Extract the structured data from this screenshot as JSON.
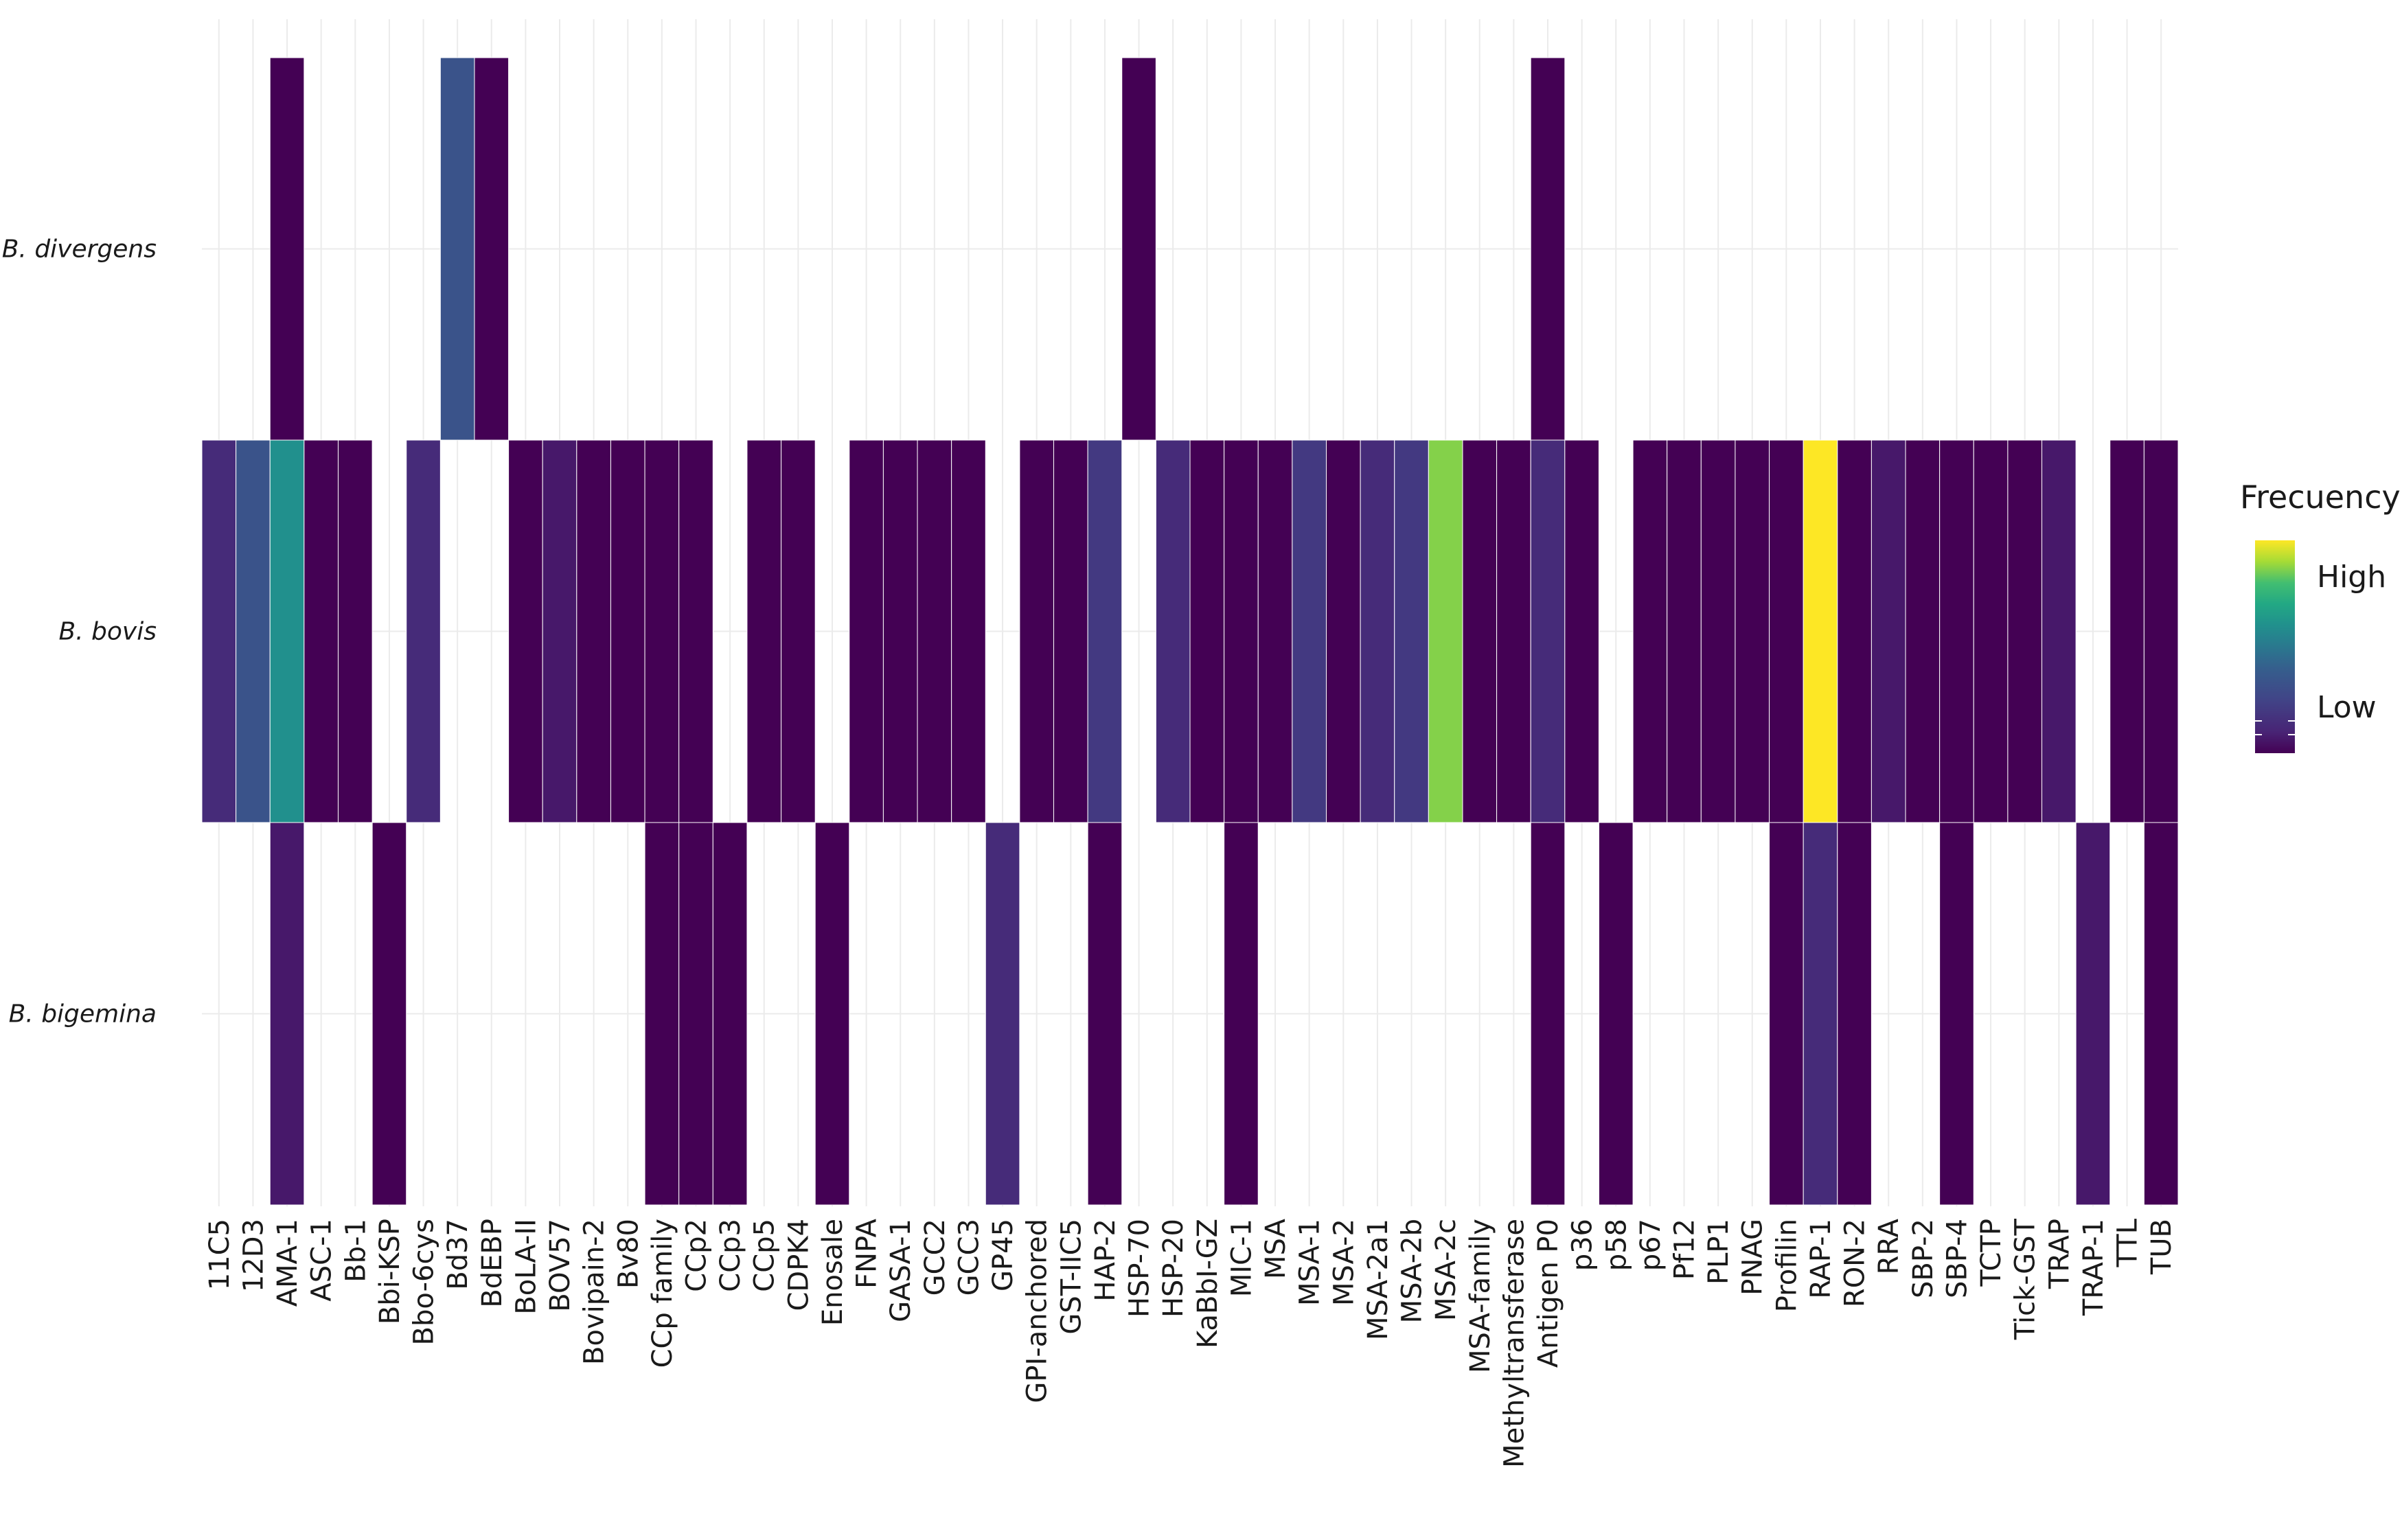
{
  "chart_data": {
    "type": "heatmap",
    "x_categories": [
      "11C5",
      "12D3",
      "AMA-1",
      "ASC-1",
      "Bb-1",
      "Bbi-KSP",
      "Bbo-6cys",
      "Bd37",
      "BdEBP",
      "BoLA-II",
      "BOV57",
      "Bovipain-2",
      "Bv80",
      "CCp family",
      "CCp2",
      "CCp3",
      "CCp5",
      "CDPK4",
      "Enosale",
      "FNPA",
      "GASA-1",
      "GCC2",
      "GCC3",
      "GP45",
      "GPI-anchored",
      "GST-IIC5",
      "HAP-2",
      "HSP-70",
      "HSP-20",
      "KaBbI-GZ",
      "MIC-1",
      "MSA",
      "MSA-1",
      "MSA-2",
      "MSA-2a1",
      "MSA-2b",
      "MSA-2c",
      "MSA-family",
      "Methyltransferase",
      "Antigen P0",
      "p36",
      "p58",
      "p67",
      "Pf12",
      "PLP1",
      "PNAG",
      "Profilin",
      "RAP-1",
      "RON-2",
      "RRA",
      "SBP-2",
      "SBP-4",
      "TCTP",
      "Tick-GST",
      "TRAP",
      "TRAP-1",
      "TTL",
      "TUB"
    ],
    "y_categories": [
      "B. divergens",
      "B. bovis",
      "B. bigemina"
    ],
    "values": {
      "B. divergens": [
        null,
        null,
        1,
        null,
        null,
        null,
        null,
        6,
        1,
        null,
        null,
        null,
        null,
        null,
        null,
        null,
        null,
        null,
        null,
        null,
        null,
        null,
        null,
        null,
        null,
        null,
        null,
        1,
        null,
        null,
        null,
        null,
        null,
        null,
        null,
        null,
        null,
        null,
        null,
        1,
        null,
        null,
        null,
        null,
        null,
        null,
        null,
        null,
        null,
        null,
        null,
        null,
        null,
        null,
        null,
        null,
        null,
        null
      ],
      "B. bovis": [
        3,
        6,
        10,
        1,
        1,
        null,
        3,
        null,
        null,
        1,
        2,
        1,
        1,
        1,
        1,
        null,
        1,
        1,
        null,
        1,
        1,
        1,
        1,
        null,
        1,
        1,
        4,
        null,
        3,
        1,
        1,
        1,
        4,
        1,
        3,
        4,
        14,
        1,
        1,
        3,
        1,
        null,
        1,
        1,
        1,
        1,
        1,
        16,
        1,
        2,
        1,
        1,
        1,
        1,
        2,
        null,
        1,
        1
      ],
      "B. bigemina": [
        null,
        null,
        2,
        null,
        null,
        1,
        null,
        null,
        null,
        null,
        null,
        null,
        null,
        1,
        1,
        1,
        null,
        null,
        1,
        null,
        null,
        null,
        null,
        3,
        null,
        null,
        1,
        null,
        null,
        null,
        1,
        null,
        null,
        null,
        null,
        null,
        null,
        null,
        null,
        1,
        null,
        1,
        null,
        null,
        null,
        null,
        1,
        3,
        1,
        null,
        null,
        1,
        null,
        null,
        null,
        2,
        null,
        1
      ]
    },
    "value_range": [
      1,
      16
    ],
    "color_scale": "viridis",
    "colors": {
      "low": "#440154",
      "mid": "#21908c",
      "high": "#fde725"
    },
    "legend": {
      "title": "Frecuency",
      "high_label": "High",
      "low_label": "Low",
      "position": "right"
    },
    "grid": true
  }
}
